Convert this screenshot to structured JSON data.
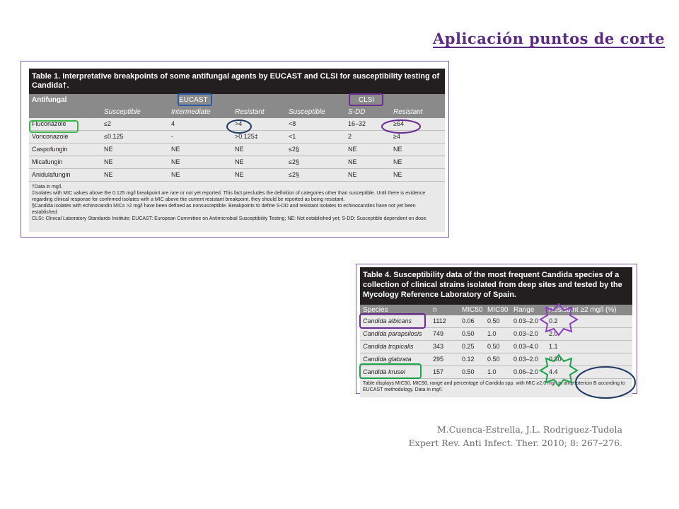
{
  "slide": {
    "title": "Aplicación puntos de corte"
  },
  "table1": {
    "title": "Table 1. Interpretative breakpoints of some antifungal agents by EUCAST and CLSI for susceptibility testing of Candida†.",
    "col_antifungal": "Antifungal",
    "group_eucast": "EUCAST",
    "group_clsi": "CLSI",
    "subheaders": [
      "Susceptible",
      "Intermediate",
      "Resistant",
      "Susceptible",
      "S-DD",
      "Resistant"
    ],
    "rows": [
      [
        "Fluconazole",
        "≤2",
        "4",
        ">4",
        "<8",
        "16–32",
        "≥64"
      ],
      [
        "Voriconazole",
        "≤0.125",
        "-",
        ">0.125‡",
        "<1",
        "2",
        "≥4"
      ],
      [
        "Caspofungin",
        "NE",
        "NE",
        "NE",
        "≤2§",
        "NE",
        "NE"
      ],
      [
        "Micafungin",
        "NE",
        "NE",
        "NE",
        "≤2§",
        "NE",
        "NE"
      ],
      [
        "Anidulafungin",
        "NE",
        "NE",
        "NE",
        "≤2§",
        "NE",
        "NE"
      ]
    ],
    "notes": [
      "†Data in mg/l.",
      "‡Isolates with MIC values above the 0.125 mg/l breakpoint are rare or not yet reported. This fact precludes the definition of categories other than susceptible. Until there is evidence regarding clinical response for confirmed isolates with a MIC above the current resistant breakpoint, they should be reported as being resistant.",
      "§Candida isolates with echinocandin MICs >2 mg/l have been defined as nonsusceptible. Breakpoints to define S-DD and resistant isolates to echinocandins have not yet been established.",
      "CLSI: Clinical Laboratory Standards Institute; EUCAST: European Committee on Antimicrobial Susceptibility Testing; NE: Not established yet; S-DD: Susceptible dependent on dose."
    ]
  },
  "table4": {
    "title": "Table 4. Susceptibility data of the most frequent Candida species of a collection of clinical strains isolated from deep sites and tested by the Mycology Reference Laboratory of Spain.",
    "headers": [
      "Species",
      "n",
      "MIC50",
      "MIC90",
      "Range",
      "Resistant ≥2 mg/l (%)"
    ],
    "rows": [
      [
        "Candida albicans",
        "1112",
        "0.06",
        "0.50",
        "0.03–2.0",
        "0.2"
      ],
      [
        "Candida parapsilosis",
        "749",
        "0.50",
        "1.0",
        "0.03–2.0",
        "2.0"
      ],
      [
        "Candida tropicalis",
        "343",
        "0.25",
        "0.50",
        "0.03–4.0",
        "1.1"
      ],
      [
        "Candida glabrata",
        "295",
        "0.12",
        "0.50",
        "0.03–2.0",
        "0.30"
      ],
      [
        "Candida krusei",
        "157",
        "0.50",
        "1.0",
        "0.06–2.0",
        "4.4"
      ]
    ],
    "notes": "Table displays MIC50, MIC90, range and percentage of Candida spp. with MIC ≥2.0 mg/l to amphotericin B according to EUCAST methodology. Data in mg/l."
  },
  "citation": {
    "line1": "M.Cuenca-Estrella, J.L. Rodriguez-Tudela",
    "line2": "Expert Rev. Anti Infect. Ther. 2010; 8: 267–276."
  },
  "colors": {
    "title": "#5b2c86",
    "highlight_green": "#3cb54a",
    "highlight_purple": "#6a2c91",
    "highlight_blue": "#2a5aa8",
    "highlight_navy": "#1f3864",
    "green_star": "#1aa34a",
    "purple_star": "#8c3fbf"
  }
}
